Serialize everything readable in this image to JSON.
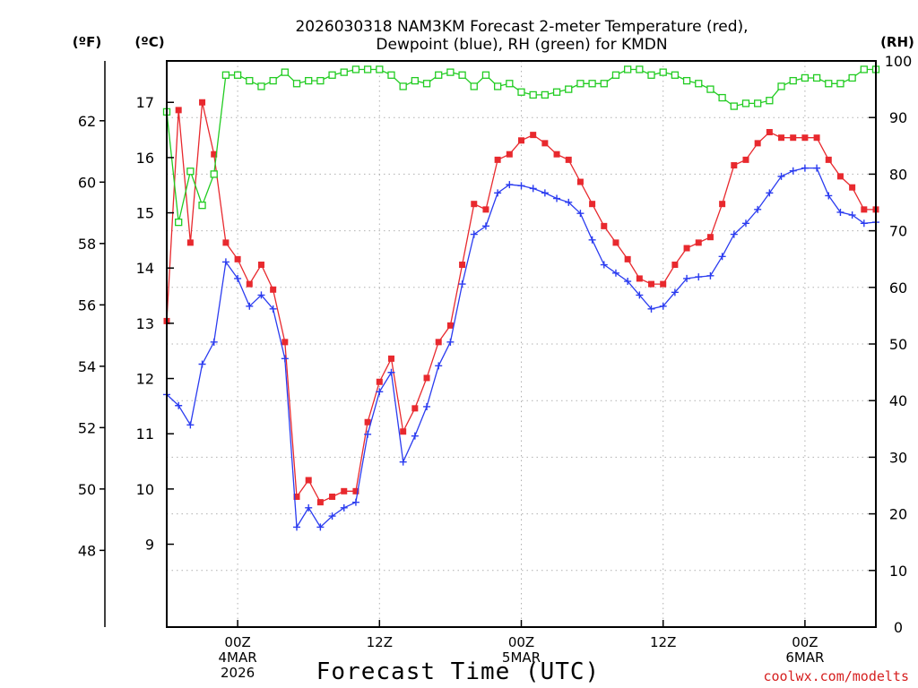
{
  "chart_data": {
    "type": "line",
    "title_line1": "2026030318 NAM3KM Forecast 2-meter Temperature (red),",
    "title_line2": "Dewpoint (blue), RH (green) for KMDN",
    "units": {
      "fahrenheit": "(ºF)",
      "celsius": "(ºC)",
      "rh": "(RH)"
    },
    "xlabel": "Forecast Time (UTC)",
    "credit": "coolwx.com/modelts",
    "x_range_hours": [
      0,
      60
    ],
    "x_ticks": [
      {
        "hour": 6,
        "lines": [
          "00Z",
          "4MAR",
          "2026"
        ]
      },
      {
        "hour": 18,
        "lines": [
          "12Z"
        ]
      },
      {
        "hour": 30,
        "lines": [
          "00Z",
          "5MAR"
        ]
      },
      {
        "hour": 42,
        "lines": [
          "12Z"
        ]
      },
      {
        "hour": 54,
        "lines": [
          "00Z",
          "6MAR"
        ]
      }
    ],
    "celsius_axis": {
      "min": 7.5,
      "max": 17.75,
      "ticks": [
        9,
        10,
        11,
        12,
        13,
        14,
        15,
        16,
        17
      ]
    },
    "fahrenheit_axis": {
      "ticks": [
        48,
        50,
        52,
        54,
        56,
        58,
        60,
        62
      ]
    },
    "rh_axis": {
      "min": 0,
      "max": 100,
      "ticks": [
        0,
        10,
        20,
        30,
        40,
        50,
        60,
        70,
        80,
        90,
        100
      ]
    },
    "grid": true,
    "series": [
      {
        "name": "Temperature",
        "units": "C",
        "color": "#e8292e",
        "marker": "filled-square",
        "x": [
          0,
          1,
          2,
          3,
          4,
          5,
          6,
          7,
          8,
          9,
          10,
          11,
          12,
          13,
          14,
          15,
          16,
          17,
          18,
          19,
          20,
          21,
          22,
          23,
          24,
          25,
          26,
          27,
          28,
          29,
          30,
          31,
          32,
          33,
          34,
          35,
          36,
          37,
          38,
          39,
          40,
          41,
          42,
          43,
          44,
          45,
          46,
          47,
          48,
          49,
          50,
          51,
          52,
          53,
          54,
          55,
          56,
          57,
          58,
          59,
          60
        ],
        "values": [
          13.04,
          16.86,
          14.46,
          17.0,
          16.06,
          14.46,
          14.16,
          13.71,
          14.06,
          13.61,
          12.66,
          9.86,
          10.16,
          9.76,
          9.86,
          9.96,
          9.96,
          11.21,
          11.94,
          12.36,
          11.04,
          11.46,
          12.01,
          12.66,
          12.96,
          14.06,
          15.16,
          15.06,
          15.96,
          16.06,
          16.31,
          16.41,
          16.26,
          16.06,
          15.96,
          15.56,
          15.16,
          14.76,
          14.46,
          14.16,
          13.81,
          13.71,
          13.71,
          14.06,
          14.36,
          14.46,
          14.56,
          15.16,
          15.86,
          15.96,
          16.26,
          16.46,
          16.36,
          16.36,
          16.36,
          16.36,
          15.96,
          15.66,
          15.46,
          15.06,
          15.06
        ]
      },
      {
        "name": "Dewpoint",
        "units": "C",
        "color": "#2b3cf0",
        "marker": "plus",
        "x": [
          0,
          1,
          2,
          3,
          4,
          5,
          6,
          7,
          8,
          9,
          10,
          11,
          12,
          13,
          14,
          15,
          16,
          17,
          18,
          19,
          20,
          21,
          22,
          23,
          24,
          25,
          26,
          27,
          28,
          29,
          30,
          31,
          32,
          33,
          34,
          35,
          36,
          37,
          38,
          39,
          40,
          41,
          42,
          43,
          44,
          45,
          46,
          47,
          48,
          49,
          50,
          51,
          52,
          53,
          54,
          55,
          56,
          57,
          58,
          59,
          60
        ],
        "values": [
          11.71,
          11.51,
          11.16,
          12.26,
          12.66,
          14.11,
          13.81,
          13.31,
          13.51,
          13.26,
          12.36,
          9.31,
          9.66,
          9.31,
          9.51,
          9.66,
          9.76,
          10.99,
          11.76,
          12.11,
          10.49,
          10.96,
          11.49,
          12.23,
          12.66,
          13.71,
          14.61,
          14.76,
          15.36,
          15.51,
          15.49,
          15.44,
          15.36,
          15.26,
          15.19,
          14.99,
          14.51,
          14.06,
          13.91,
          13.76,
          13.51,
          13.26,
          13.31,
          13.56,
          13.81,
          13.84,
          13.86,
          14.21,
          14.61,
          14.81,
          15.06,
          15.36,
          15.66,
          15.76,
          15.81,
          15.81,
          15.31,
          15.01,
          14.96,
          14.81,
          14.83
        ]
      },
      {
        "name": "RH",
        "units": "%",
        "color": "#22cc22",
        "marker": "open-square",
        "x": [
          0,
          1,
          2,
          3,
          4,
          5,
          6,
          7,
          8,
          9,
          10,
          11,
          12,
          13,
          14,
          15,
          16,
          17,
          18,
          19,
          20,
          21,
          22,
          23,
          24,
          25,
          26,
          27,
          28,
          29,
          30,
          31,
          32,
          33,
          34,
          35,
          36,
          37,
          38,
          39,
          40,
          41,
          42,
          43,
          44,
          45,
          46,
          47,
          48,
          49,
          50,
          51,
          52,
          53,
          54,
          55,
          56,
          57,
          58,
          59,
          60
        ],
        "values": [
          91,
          71.5,
          80.5,
          74.5,
          80,
          97.5,
          97.5,
          96.5,
          95.5,
          96.5,
          98,
          96,
          96.5,
          96.5,
          97.5,
          98,
          98.5,
          98.5,
          98.5,
          97.5,
          95.5,
          96.5,
          96,
          97.5,
          98,
          97.5,
          95.5,
          97.5,
          95.5,
          96,
          94.5,
          94,
          94,
          94.5,
          95,
          96,
          96,
          96,
          97.5,
          98.5,
          98.5,
          97.5,
          98,
          97.5,
          96.5,
          96,
          95,
          93.5,
          92,
          92.5,
          92.5,
          93,
          95.5,
          96.5,
          97,
          97,
          96,
          96,
          97,
          98.5,
          98.5
        ]
      }
    ]
  }
}
